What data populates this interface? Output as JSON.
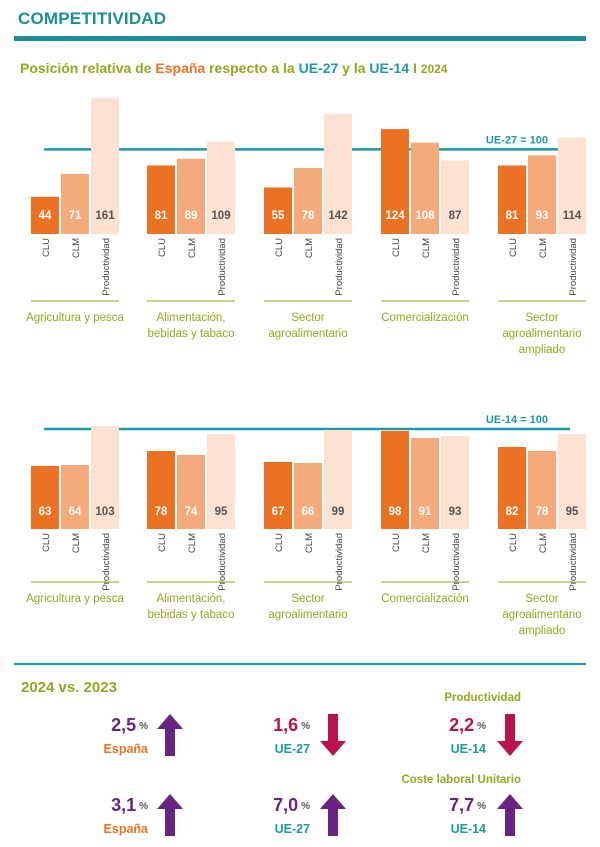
{
  "header": {
    "title": "COMPETITIVIDAD",
    "subtitle_pre": "Posición relativa de ",
    "subtitle_es": "España",
    "subtitle_mid": " respecto a la ",
    "subtitle_ue27": "UE-27",
    "subtitle_and": " y la ",
    "subtitle_ue14": "UE-14",
    "subtitle_sep": " I ",
    "subtitle_year": "2024"
  },
  "colors": {
    "clu": "#ec7223",
    "clm": "#f4aa7a",
    "prod": "#fde2d1",
    "reference_line": "#1b9aa6",
    "sector_label": "#94a81e",
    "up_arrow": "#6a2382",
    "down_arrow": "#b8134b"
  },
  "chart_data": [
    {
      "type": "bar",
      "title": "UE-27",
      "reference_label": "UE-27 = 100",
      "reference_value": 100,
      "ylim": [
        0,
        170
      ],
      "categories": [
        "Agricultura y pesca",
        "Alimentación, bebidas y tabaco",
        "Sector agroalimentario",
        "Comercialización",
        "Sector agroalimentario ampliado"
      ],
      "series": [
        {
          "name": "CLU",
          "values": [
            44,
            81,
            55,
            124,
            81
          ]
        },
        {
          "name": "CLM",
          "values": [
            71,
            89,
            78,
            108,
            93
          ]
        },
        {
          "name": "Productividad",
          "values": [
            161,
            109,
            142,
            87,
            114
          ]
        }
      ]
    },
    {
      "type": "bar",
      "title": "UE-14",
      "reference_label": "UE-14 = 100",
      "reference_value": 100,
      "ylim": [
        0,
        110
      ],
      "categories": [
        "Agricultura y pesca",
        "Alimentación, bebidas y tabaco",
        "Sector agroalimentario",
        "Comercialización",
        "Sector agroalimentario ampliado"
      ],
      "series": [
        {
          "name": "CLU",
          "values": [
            63,
            78,
            67,
            98,
            82
          ]
        },
        {
          "name": "CLM",
          "values": [
            64,
            74,
            66,
            91,
            78
          ]
        },
        {
          "name": "Productividad",
          "values": [
            103,
            95,
            99,
            93,
            95
          ]
        }
      ]
    }
  ],
  "comparison": {
    "title": "2024 vs. 2023",
    "productividad_label": "Productividad",
    "coste_label": "Coste laboral Unitario",
    "pct_symbol": "%",
    "rows": [
      [
        {
          "value": "2,5",
          "region": "España",
          "direction": "up",
          "region_color": "#ec7223",
          "value_color": "#6a2382"
        },
        {
          "value": "1,6",
          "region": "UE-27",
          "direction": "down",
          "region_color": "#1b9aa6",
          "value_color": "#b8134b"
        },
        {
          "value": "2,2",
          "region": "UE-14",
          "direction": "down",
          "region_color": "#1b9aa6",
          "value_color": "#b8134b"
        }
      ],
      [
        {
          "value": "3,1",
          "region": "España",
          "direction": "up",
          "region_color": "#ec7223",
          "value_color": "#6a2382"
        },
        {
          "value": "7,0",
          "region": "UE-27",
          "direction": "up",
          "region_color": "#1b9aa6",
          "value_color": "#6a2382"
        },
        {
          "value": "7,7",
          "region": "UE-14",
          "direction": "up",
          "region_color": "#1b9aa6",
          "value_color": "#6a2382"
        }
      ]
    ]
  }
}
